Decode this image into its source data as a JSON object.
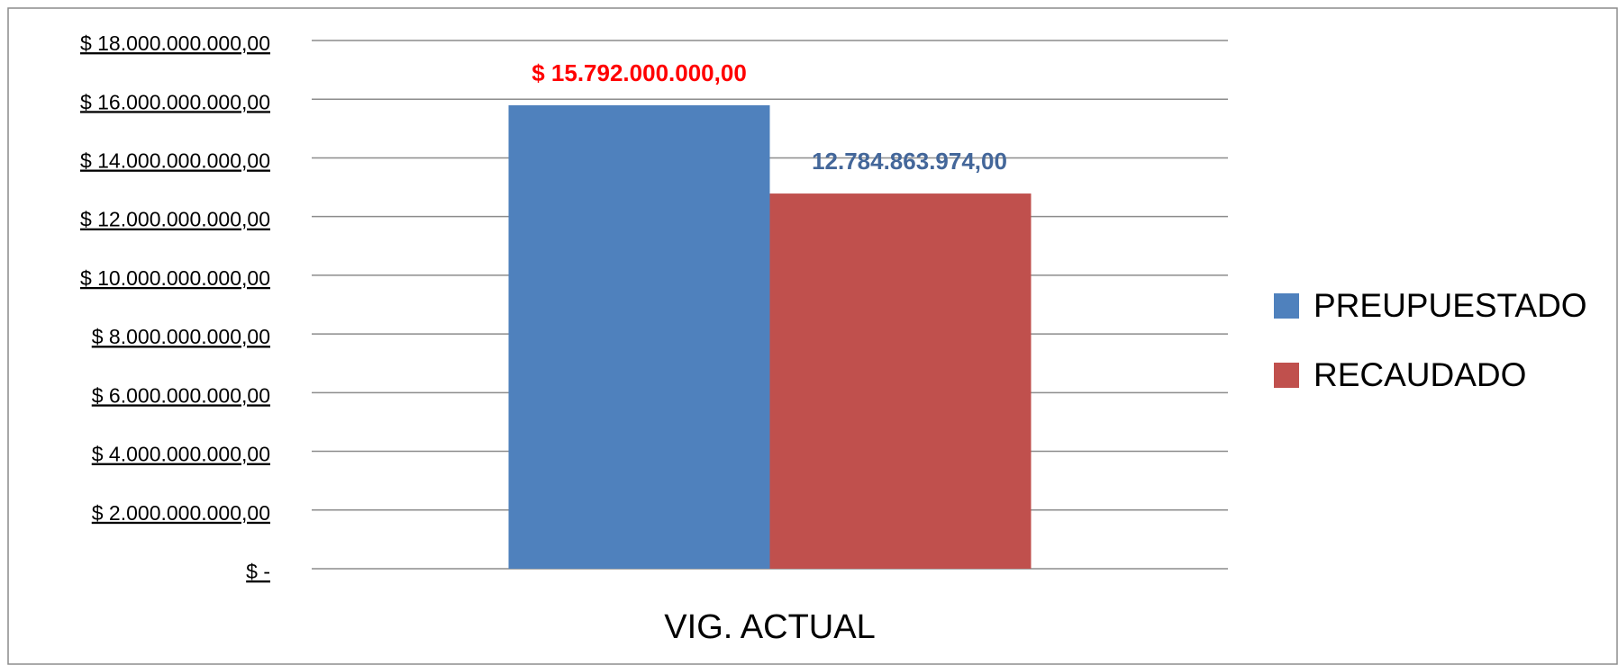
{
  "chart_data": {
    "type": "bar",
    "categories": [
      "VIG. ACTUAL"
    ],
    "series": [
      {
        "name": "PREUPUESTADO",
        "color": "#4f81bd",
        "values": [
          15792000000
        ],
        "value_labels": [
          "$ 15.792.000.000,00"
        ],
        "label_color": "#ff0000"
      },
      {
        "name": "RECAUDADO",
        "color": "#c0504d",
        "values": [
          12784863974
        ],
        "value_labels": [
          "12.784.863.974,00"
        ],
        "label_color": "#44679a"
      }
    ],
    "ylim": [
      0,
      18000000000
    ],
    "yticks": [
      {
        "value": 0,
        "label": "$ -"
      },
      {
        "value": 2000000000,
        "label": "$ 2.000.000.000,00"
      },
      {
        "value": 4000000000,
        "label": "$ 4.000.000.000,00"
      },
      {
        "value": 6000000000,
        "label": "$ 6.000.000.000,00"
      },
      {
        "value": 8000000000,
        "label": "$ 8.000.000.000,00"
      },
      {
        "value": 10000000000,
        "label": "$ 10.000.000.000,00"
      },
      {
        "value": 12000000000,
        "label": "$ 12.000.000.000,00"
      },
      {
        "value": 14000000000,
        "label": "$ 14.000.000.000,00"
      },
      {
        "value": 16000000000,
        "label": "$ 16.000.000.000,00"
      },
      {
        "value": 18000000000,
        "label": "$ 18.000.000.000,00"
      }
    ],
    "grid": true,
    "legend": "right"
  }
}
